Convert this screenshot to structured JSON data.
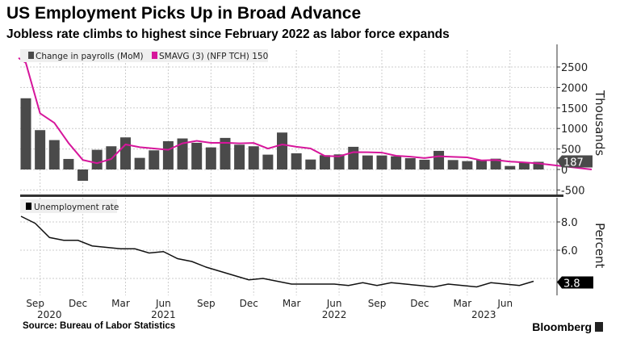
{
  "title": "US Employment Picks Up in Broad Advance",
  "subtitle": "Jobless rate climbs to highest since February 2022 as labor force expands",
  "source": "Source: Bureau of Labor Statistics",
  "brand": "Bloomberg",
  "colors": {
    "bars": "#4a4a4a",
    "ma": "#d6169b",
    "unemp": "#111111",
    "grid": "#cccccc"
  },
  "chart_data": [
    {
      "type": "bar",
      "legend_position": "top-left",
      "grid": true,
      "ylabel": "Thousands",
      "ylim": [
        -600,
        2900
      ],
      "yticks": [
        -500,
        0,
        500,
        1000,
        1500,
        2000,
        2500
      ],
      "months": [
        "Aug 2020",
        "Sep 2020",
        "Oct 2020",
        "Nov 2020",
        "Dec 2020",
        "Jan 2021",
        "Feb 2021",
        "Mar 2021",
        "Apr 2021",
        "May 2021",
        "Jun 2021",
        "Jul 2021",
        "Aug 2021",
        "Sep 2021",
        "Oct 2021",
        "Nov 2021",
        "Dec 2021",
        "Jan 2022",
        "Feb 2022",
        "Mar 2022",
        "Apr 2022",
        "May 2022",
        "Jun 2022",
        "Jul 2022",
        "Aug 2022",
        "Sep 2022",
        "Oct 2022",
        "Nov 2022",
        "Dec 2022",
        "Jan 2023",
        "Feb 2023",
        "Mar 2023",
        "Apr 2023",
        "May 2023",
        "Jun 2023",
        "Jul 2023",
        "Aug 2023"
      ],
      "series": [
        {
          "name": "Change in payrolls (MoM)",
          "type": "bar",
          "values": [
            1737,
            960,
            717,
            257,
            -276,
            480,
            566,
            783,
            283,
            467,
            690,
            757,
            651,
            539,
            770,
            605,
            566,
            362,
            901,
            395,
            243,
            349,
            368,
            553,
            342,
            342,
            322,
            276,
            237,
            454,
            230,
            204,
            230,
            263,
            86,
            171,
            187
          ]
        },
        {
          "name": "SMAVG (3) (NFP TCH) 150",
          "type": "line",
          "values": [
            2600,
            1370,
            1138,
            645,
            233,
            154,
            257,
            610,
            544,
            511,
            480,
            638,
            699,
            649,
            653,
            638,
            647,
            511,
            610,
            553,
            513,
            329,
            320,
            423,
            421,
            412,
            335,
            313,
            278,
            322,
            307,
            296,
            221,
            232,
            193,
            173,
            148
          ]
        }
      ],
      "last_value_label": "187"
    },
    {
      "type": "line",
      "legend_position": "top-left",
      "grid": true,
      "ylabel": "Percent",
      "ylim": [
        3.0,
        9.8
      ],
      "yticks": [
        "8.0",
        "6.0"
      ],
      "series": [
        {
          "name": "Unemployment rate",
          "values": [
            8.4,
            7.9,
            6.9,
            6.7,
            6.7,
            6.3,
            6.2,
            6.1,
            6.1,
            5.8,
            5.9,
            5.4,
            5.2,
            4.8,
            4.5,
            4.2,
            3.9,
            4.0,
            3.8,
            3.6,
            3.6,
            3.6,
            3.6,
            3.5,
            3.7,
            3.5,
            3.7,
            3.6,
            3.5,
            3.4,
            3.6,
            3.5,
            3.4,
            3.7,
            3.6,
            3.5,
            3.8
          ]
        }
      ],
      "last_value_label": "3.8"
    }
  ],
  "x_axis": {
    "month_ticks": [
      {
        "label": "Sep",
        "index": 1
      },
      {
        "label": "Dec",
        "index": 4
      },
      {
        "label": "Mar",
        "index": 7
      },
      {
        "label": "Jun",
        "index": 10
      },
      {
        "label": "Sep",
        "index": 13
      },
      {
        "label": "Dec",
        "index": 16
      },
      {
        "label": "Mar",
        "index": 19
      },
      {
        "label": "Jun",
        "index": 22
      },
      {
        "label": "Sep",
        "index": 25
      },
      {
        "label": "Dec",
        "index": 28
      },
      {
        "label": "Mar",
        "index": 31
      },
      {
        "label": "Jun",
        "index": 34
      }
    ],
    "year_ticks": [
      {
        "label": "2020",
        "index": 2
      },
      {
        "label": "2021",
        "index": 10
      },
      {
        "label": "2022",
        "index": 22
      },
      {
        "label": "2023",
        "index": 32.5
      }
    ]
  }
}
